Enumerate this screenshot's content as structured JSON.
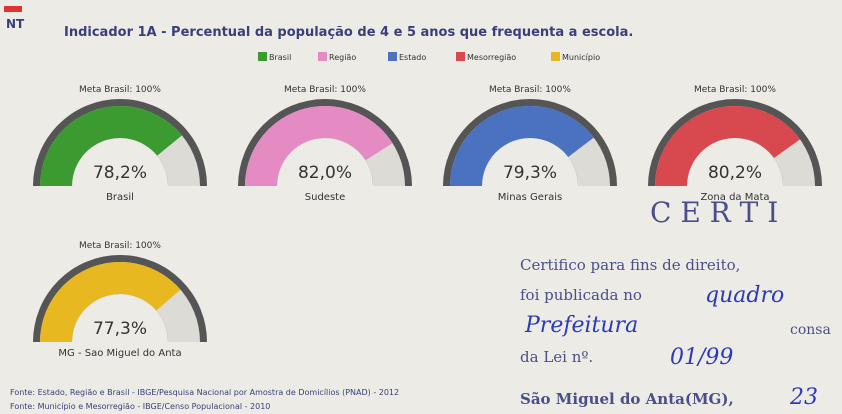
{
  "logo": "NT",
  "title": "Indicador 1A - Percentual da população de 4 e 5 anos que frequenta a escola.",
  "legend": [
    {
      "name": "Brasil",
      "color": "#3b9a30"
    },
    {
      "name": "Região",
      "color": "#e58bc4"
    },
    {
      "name": "Estado",
      "color": "#4a72c0"
    },
    {
      "name": "Mesorregião",
      "color": "#d8484f"
    },
    {
      "name": "Município",
      "color": "#e8b820"
    }
  ],
  "chart_data": [
    {
      "type": "gauge",
      "annotation": "Meta Brasil: 100%",
      "name": "Brasil",
      "values": [
        78.2
      ],
      "value_labels": [
        "78,2%"
      ],
      "color": "#3b9a30",
      "ylim": [
        0,
        100
      ]
    },
    {
      "type": "gauge",
      "annotation": "Meta Brasil: 100%",
      "name": "Sudeste",
      "values": [
        82.0
      ],
      "value_labels": [
        "82,0%"
      ],
      "color": "#e58bc4",
      "ylim": [
        0,
        100
      ]
    },
    {
      "type": "gauge",
      "annotation": "Meta Brasil: 100%",
      "name": "Minas Gerais",
      "values": [
        79.3
      ],
      "value_labels": [
        "79,3%"
      ],
      "color": "#4a72c0",
      "ylim": [
        0,
        100
      ]
    },
    {
      "type": "gauge",
      "annotation": "Meta Brasil: 100%",
      "name": "Zona da Mata",
      "values": [
        80.2
      ],
      "value_labels": [
        "80,2%"
      ],
      "color": "#d8484f",
      "ylim": [
        0,
        100
      ]
    },
    {
      "type": "gauge",
      "annotation": "Meta Brasil: 100%",
      "name": "MG - Sao Miguel do Anta",
      "values": [
        77.3
      ],
      "value_labels": [
        "77,3%"
      ],
      "color": "#e8b820",
      "ylim": [
        0,
        100
      ]
    }
  ],
  "footnotes": [
    "Fonte: Estado, Região e Brasil - IBGE/Pesquisa Nacional por Amostra de Domicílios (PNAD) - 2012",
    "Fonte: Município e Mesorregião - IBGE/Censo Populacional - 2010"
  ],
  "stamp": {
    "heading": "C E R T I",
    "line1": "Certifico para fins de direito,",
    "line2": "foi publicada no",
    "line2_hand": "quadro",
    "line3_hand": "Prefeitura",
    "line3": "consa",
    "line4": "da Lei nº.",
    "line4_hand": "01/99",
    "line5": "São Miguel do Anta(MG),",
    "line5_hand": "23"
  }
}
